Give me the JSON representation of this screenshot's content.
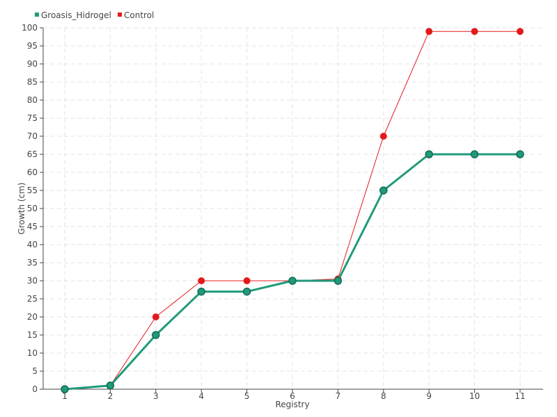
{
  "chart_data": {
    "type": "line",
    "xlabel": "Registry",
    "ylabel": "Growth (cm)",
    "x": [
      1,
      2,
      3,
      4,
      5,
      6,
      7,
      8,
      9,
      10,
      11
    ],
    "ylim": [
      0,
      100
    ],
    "yticks": [
      0,
      5,
      10,
      15,
      20,
      25,
      30,
      35,
      40,
      45,
      50,
      55,
      60,
      65,
      70,
      75,
      80,
      85,
      90,
      95,
      100
    ],
    "grid": true,
    "legend_position": "top-left",
    "series": [
      {
        "name": "Groasis_Hidrogel",
        "color": "#1f9a7a",
        "values": [
          0,
          1,
          15,
          27,
          27,
          30,
          30,
          55,
          65,
          65,
          65
        ]
      },
      {
        "name": "Control",
        "color": "#e31a1c",
        "values": [
          0,
          1,
          20,
          30,
          30,
          30,
          30.5,
          70,
          99,
          99,
          99
        ]
      }
    ]
  }
}
